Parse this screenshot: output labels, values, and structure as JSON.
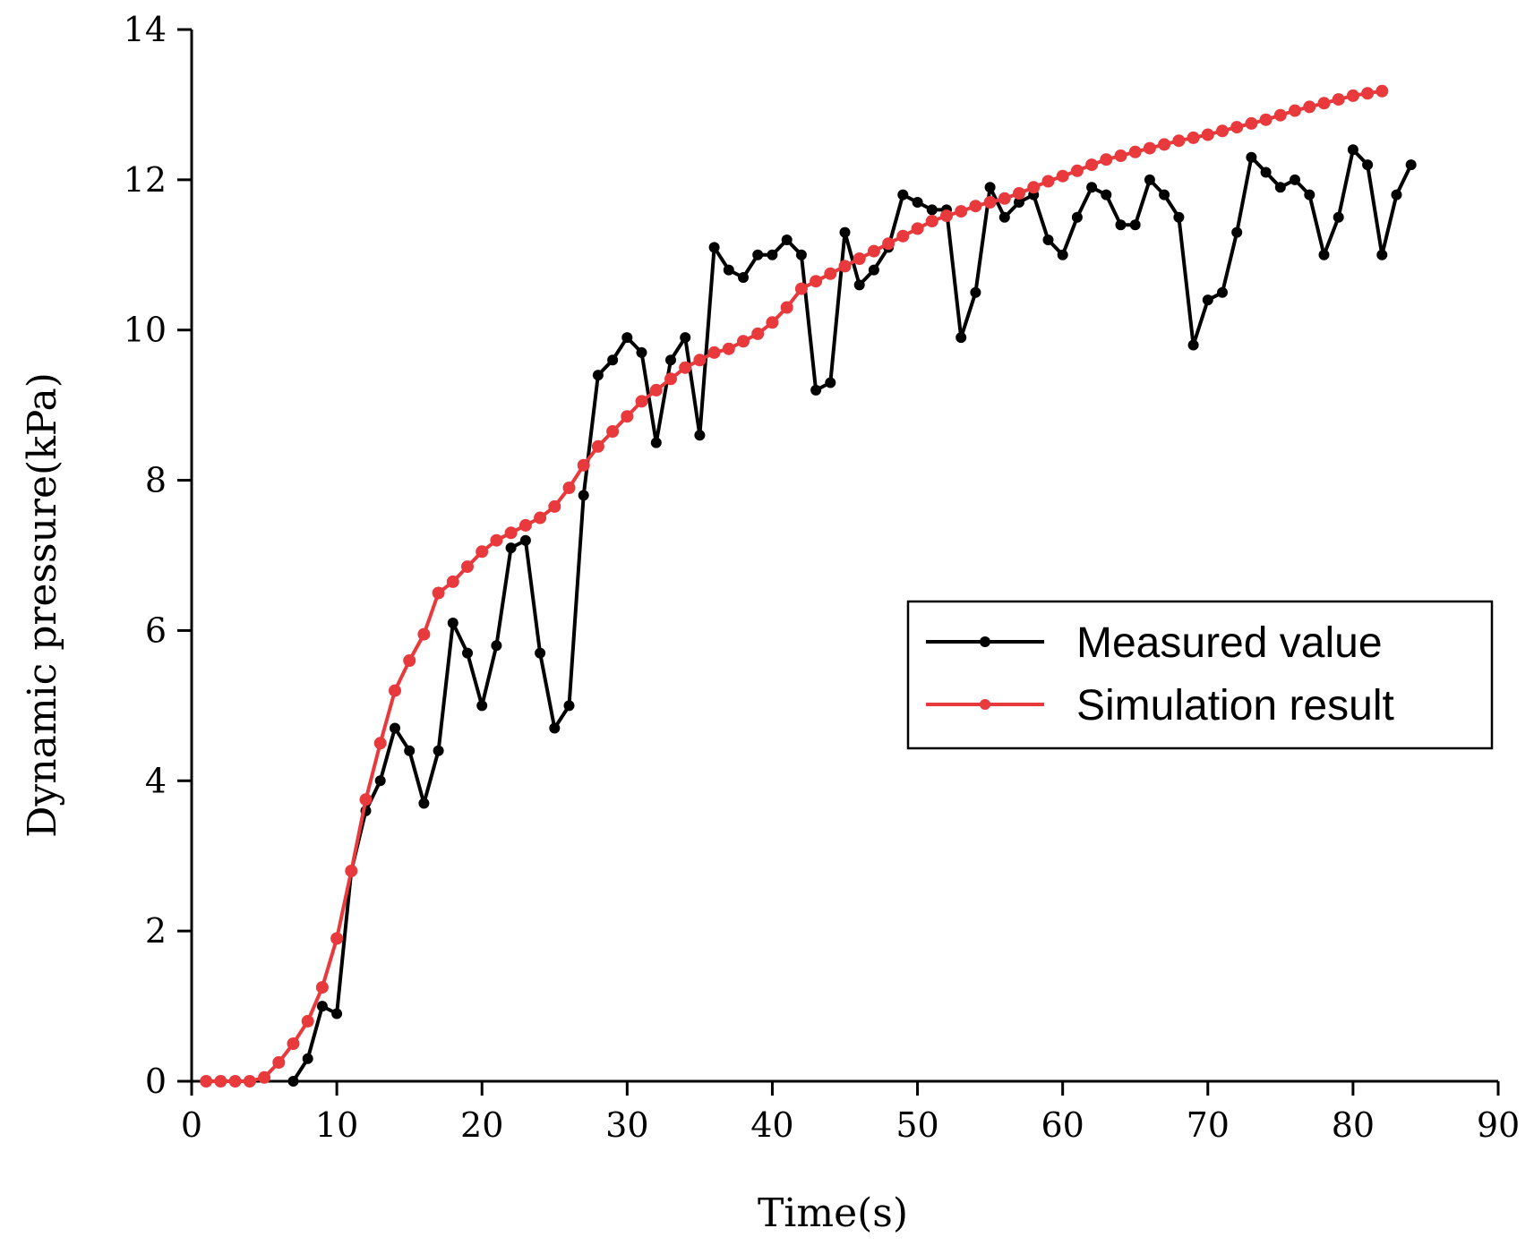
{
  "chart_data": {
    "type": "line",
    "xlabel": "Time(s)",
    "ylabel": "Dynamic pressure(kPa)",
    "xlim": [
      0,
      90
    ],
    "ylim": [
      0,
      14
    ],
    "xticks": [
      0,
      10,
      20,
      30,
      40,
      50,
      60,
      70,
      80,
      90
    ],
    "yticks": [
      0,
      2,
      4,
      6,
      8,
      10,
      12,
      14
    ],
    "grid": false,
    "legend_position": "center-right",
    "series": [
      {
        "name": "Measured value",
        "color": "#000000",
        "x": [
          7,
          8,
          9,
          10,
          11,
          12,
          13,
          14,
          15,
          16,
          17,
          18,
          19,
          20,
          21,
          22,
          23,
          24,
          25,
          26,
          27,
          28,
          29,
          30,
          31,
          32,
          33,
          34,
          35,
          36,
          37,
          38,
          39,
          40,
          41,
          42,
          43,
          44,
          45,
          46,
          47,
          48,
          49,
          50,
          51,
          52,
          53,
          54,
          55,
          56,
          57,
          58,
          59,
          60,
          61,
          62,
          63,
          64,
          65,
          66,
          67,
          68,
          69,
          70,
          71,
          72,
          73,
          74,
          75,
          76,
          77,
          78,
          79,
          80,
          81,
          82,
          83,
          84
        ],
        "y": [
          0,
          0.3,
          1.0,
          0.9,
          2.8,
          3.6,
          4.0,
          4.7,
          4.4,
          3.7,
          4.4,
          6.1,
          5.7,
          5.0,
          5.8,
          7.1,
          7.2,
          5.7,
          4.7,
          5.0,
          7.8,
          9.4,
          9.6,
          9.9,
          9.7,
          8.5,
          9.6,
          9.9,
          8.6,
          11.1,
          10.8,
          10.7,
          11.0,
          11.0,
          11.2,
          11.0,
          9.2,
          9.3,
          11.3,
          10.6,
          10.8,
          11.1,
          11.8,
          11.7,
          11.6,
          11.6,
          9.9,
          10.5,
          11.9,
          11.5,
          11.7,
          11.8,
          11.2,
          11.0,
          11.5,
          11.9,
          11.8,
          11.4,
          11.4,
          12.0,
          11.8,
          11.5,
          9.8,
          10.4,
          10.5,
          11.3,
          12.3,
          12.1,
          11.9,
          12.0,
          11.8,
          11.0,
          11.5,
          12.4,
          12.2,
          11.0,
          11.8,
          12.2
        ]
      },
      {
        "name": "Simulation result",
        "color": "#e8393c",
        "x": [
          1,
          2,
          3,
          4,
          5,
          6,
          7,
          8,
          9,
          10,
          11,
          12,
          13,
          14,
          15,
          16,
          17,
          18,
          19,
          20,
          21,
          22,
          23,
          24,
          25,
          26,
          27,
          28,
          29,
          30,
          31,
          32,
          33,
          34,
          35,
          36,
          37,
          38,
          39,
          40,
          41,
          42,
          43,
          44,
          45,
          46,
          47,
          48,
          49,
          50,
          51,
          52,
          53,
          54,
          55,
          56,
          57,
          58,
          59,
          60,
          61,
          62,
          63,
          64,
          65,
          66,
          67,
          68,
          69,
          70,
          71,
          72,
          73,
          74,
          75,
          76,
          77,
          78,
          79,
          80,
          81,
          82
        ],
        "y": [
          0,
          0,
          0,
          0,
          0.05,
          0.25,
          0.5,
          0.8,
          1.25,
          1.9,
          2.8,
          3.75,
          4.5,
          5.2,
          5.6,
          5.95,
          6.5,
          6.65,
          6.85,
          7.05,
          7.2,
          7.3,
          7.4,
          7.5,
          7.65,
          7.9,
          8.2,
          8.45,
          8.65,
          8.85,
          9.05,
          9.2,
          9.35,
          9.5,
          9.6,
          9.7,
          9.75,
          9.85,
          9.95,
          10.1,
          10.3,
          10.55,
          10.65,
          10.75,
          10.85,
          10.95,
          11.05,
          11.15,
          11.25,
          11.35,
          11.45,
          11.52,
          11.58,
          11.65,
          11.7,
          11.75,
          11.82,
          11.9,
          11.98,
          12.05,
          12.12,
          12.2,
          12.27,
          12.32,
          12.37,
          12.42,
          12.47,
          12.52,
          12.56,
          12.6,
          12.65,
          12.7,
          12.75,
          12.8,
          12.86,
          12.92,
          12.97,
          13.02,
          13.07,
          13.12,
          13.15,
          13.18
        ]
      }
    ]
  }
}
